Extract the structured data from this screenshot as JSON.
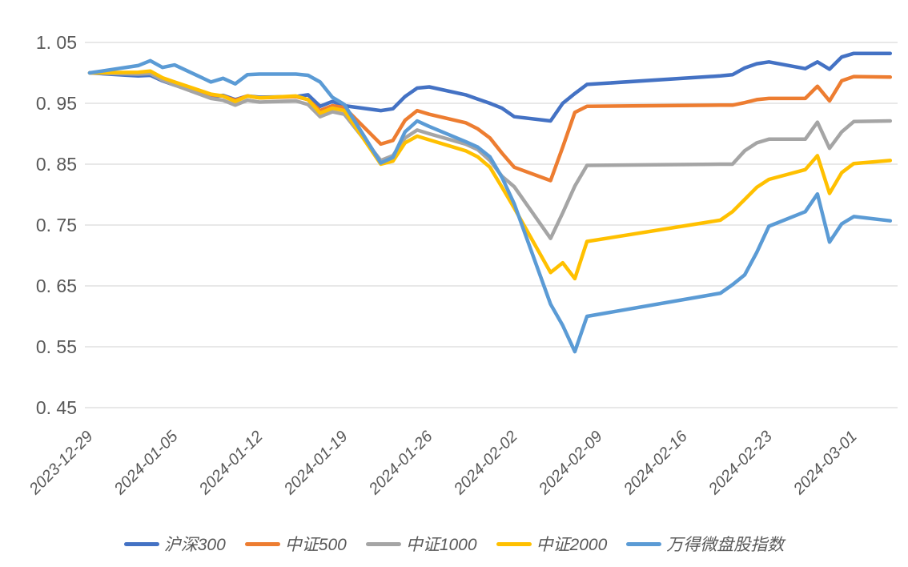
{
  "canvas": {
    "background": "#ffffff"
  },
  "colors": {
    "grid": "#D9D9D9",
    "axis_text": "#595959",
    "legend_text": "#595959"
  },
  "chart_data": {
    "type": "line",
    "title": "",
    "xlabel": "",
    "ylabel": "",
    "grid": "horizontal",
    "legend_position": "bottom",
    "ylim": [
      0.45,
      1.05
    ],
    "y_tick_step": 0.1,
    "y_tick_labels": [
      "1. 05",
      "0. 95",
      "0. 85",
      "0. 75",
      "0. 65",
      "0. 55",
      "0. 45"
    ],
    "x_tick_labels": [
      "2023-12-29",
      "2024-01-05",
      "2024-01-12",
      "2024-01-19",
      "2024-01-26",
      "2024-02-02",
      "2024-02-09",
      "2024-02-16",
      "2024-02-23",
      "2024-03-01"
    ],
    "x_tick_days": [
      0,
      7,
      14,
      21,
      28,
      35,
      42,
      49,
      56,
      63
    ],
    "x": [
      "2023-12-29",
      "2024-01-02",
      "2024-01-03",
      "2024-01-04",
      "2024-01-05",
      "2024-01-08",
      "2024-01-09",
      "2024-01-10",
      "2024-01-11",
      "2024-01-12",
      "2024-01-15",
      "2024-01-16",
      "2024-01-17",
      "2024-01-18",
      "2024-01-19",
      "2024-01-22",
      "2024-01-23",
      "2024-01-24",
      "2024-01-25",
      "2024-01-26",
      "2024-01-29",
      "2024-01-30",
      "2024-01-31",
      "2024-02-01",
      "2024-02-02",
      "2024-02-05",
      "2024-02-06",
      "2024-02-07",
      "2024-02-08",
      "2024-02-19",
      "2024-02-20",
      "2024-02-21",
      "2024-02-22",
      "2024-02-23",
      "2024-02-26",
      "2024-02-27",
      "2024-02-28",
      "2024-02-29",
      "2024-03-01",
      "2024-03-04"
    ],
    "x_days": [
      0,
      4,
      5,
      6,
      7,
      10,
      11,
      12,
      13,
      14,
      17,
      18,
      19,
      20,
      21,
      24,
      25,
      26,
      27,
      28,
      31,
      32,
      33,
      34,
      35,
      38,
      39,
      40,
      41,
      52,
      53,
      54,
      55,
      56,
      59,
      60,
      61,
      62,
      63,
      66
    ],
    "series": [
      {
        "name": "沪深300",
        "color": "#4472C4",
        "values": [
          1.0,
          0.995,
          0.996,
          0.987,
          0.98,
          0.961,
          0.963,
          0.956,
          0.962,
          0.96,
          0.961,
          0.964,
          0.945,
          0.953,
          0.946,
          0.938,
          0.941,
          0.961,
          0.975,
          0.977,
          0.964,
          0.957,
          0.95,
          0.942,
          0.928,
          0.921,
          0.95,
          0.966,
          0.981,
          0.995,
          0.997,
          1.008,
          1.015,
          1.018,
          1.007,
          1.018,
          1.006,
          1.026,
          1.032,
          1.032
        ]
      },
      {
        "name": "中证500",
        "color": "#ED7D31",
        "values": [
          1.0,
          0.999,
          1.001,
          0.991,
          0.984,
          0.964,
          0.962,
          0.955,
          0.962,
          0.959,
          0.961,
          0.956,
          0.938,
          0.946,
          0.943,
          0.883,
          0.889,
          0.922,
          0.938,
          0.932,
          0.918,
          0.908,
          0.893,
          0.868,
          0.845,
          0.823,
          0.878,
          0.935,
          0.945,
          0.947,
          0.947,
          0.951,
          0.956,
          0.958,
          0.958,
          0.978,
          0.954,
          0.987,
          0.994,
          0.993
        ]
      },
      {
        "name": "中证1000",
        "color": "#A5A5A5",
        "values": [
          1.0,
          0.998,
          0.999,
          0.988,
          0.98,
          0.958,
          0.955,
          0.947,
          0.955,
          0.952,
          0.954,
          0.948,
          0.928,
          0.936,
          0.932,
          0.856,
          0.864,
          0.893,
          0.906,
          0.9,
          0.883,
          0.874,
          0.856,
          0.83,
          0.813,
          0.728,
          0.77,
          0.814,
          0.848,
          0.85,
          0.85,
          0.872,
          0.885,
          0.891,
          0.891,
          0.919,
          0.876,
          0.903,
          0.92,
          0.921
        ]
      },
      {
        "name": "中证2000",
        "color": "#FFC000",
        "values": [
          1.0,
          1.001,
          1.003,
          0.992,
          0.985,
          0.965,
          0.962,
          0.953,
          0.962,
          0.959,
          0.962,
          0.956,
          0.934,
          0.942,
          0.938,
          0.85,
          0.855,
          0.885,
          0.896,
          0.89,
          0.872,
          0.862,
          0.845,
          0.812,
          0.778,
          0.672,
          0.688,
          0.662,
          0.723,
          0.758,
          0.772,
          0.792,
          0.812,
          0.825,
          0.841,
          0.864,
          0.802,
          0.836,
          0.851,
          0.856
        ]
      },
      {
        "name": "万得微盘股指数",
        "color": "#5B9BD5",
        "values": [
          1.0,
          1.012,
          1.02,
          1.009,
          1.013,
          0.985,
          0.991,
          0.982,
          0.997,
          0.998,
          0.998,
          0.996,
          0.985,
          0.96,
          0.948,
          0.852,
          0.861,
          0.903,
          0.921,
          0.912,
          0.887,
          0.878,
          0.862,
          0.828,
          0.785,
          0.62,
          0.585,
          0.542,
          0.6,
          0.638,
          0.652,
          0.668,
          0.705,
          0.748,
          0.772,
          0.801,
          0.722,
          0.752,
          0.764,
          0.757
        ]
      }
    ]
  }
}
